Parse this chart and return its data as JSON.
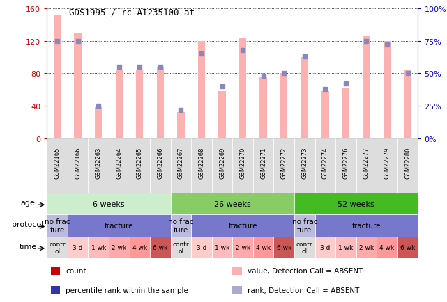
{
  "title": "GDS1995 / rc_AI235100_at",
  "samples": [
    "GSM22165",
    "GSM22166",
    "GSM22263",
    "GSM22264",
    "GSM22265",
    "GSM22266",
    "GSM22267",
    "GSM22268",
    "GSM22269",
    "GSM22270",
    "GSM22271",
    "GSM22272",
    "GSM22273",
    "GSM22274",
    "GSM22276",
    "GSM22277",
    "GSM22279",
    "GSM22280"
  ],
  "bar_values": [
    152,
    130,
    38,
    84,
    84,
    88,
    32,
    120,
    58,
    124,
    76,
    80,
    100,
    58,
    62,
    126,
    120,
    84
  ],
  "rank_values": [
    75,
    75,
    25,
    55,
    55,
    55,
    22,
    65,
    40,
    68,
    48,
    50,
    63,
    38,
    42,
    75,
    72,
    50
  ],
  "bar_color": "#FFB0B0",
  "rank_color": "#8888BB",
  "left_ylim": [
    0,
    160
  ],
  "right_ylim": [
    0,
    100
  ],
  "left_yticks": [
    0,
    40,
    80,
    120,
    160
  ],
  "right_yticks": [
    0,
    25,
    50,
    75,
    100
  ],
  "left_yticklabels": [
    "0",
    "40",
    "80",
    "120",
    "160"
  ],
  "right_yticklabels": [
    "0%",
    "25%",
    "50%",
    "75%",
    "100%"
  ],
  "age_groups": [
    {
      "label": "6 weeks",
      "start": 0,
      "end": 6,
      "color": "#CCEECC"
    },
    {
      "label": "26 weeks",
      "start": 6,
      "end": 12,
      "color": "#88CC66"
    },
    {
      "label": "52 weeks",
      "start": 12,
      "end": 18,
      "color": "#44BB22"
    }
  ],
  "protocol_groups": [
    {
      "label": "no frac\nture",
      "start": 0,
      "end": 1,
      "color": "#BBBBDD"
    },
    {
      "label": "fracture",
      "start": 1,
      "end": 6,
      "color": "#7777CC"
    },
    {
      "label": "no frac\nture",
      "start": 6,
      "end": 7,
      "color": "#BBBBDD"
    },
    {
      "label": "fracture",
      "start": 7,
      "end": 12,
      "color": "#7777CC"
    },
    {
      "label": "no frac\nture",
      "start": 12,
      "end": 13,
      "color": "#BBBBDD"
    },
    {
      "label": "fracture",
      "start": 13,
      "end": 18,
      "color": "#7777CC"
    }
  ],
  "time_groups": [
    {
      "label": "contr\nol",
      "start": 0,
      "end": 1,
      "color": "#DDDDDD"
    },
    {
      "label": "3 d",
      "start": 1,
      "end": 2,
      "color": "#FFCCCC"
    },
    {
      "label": "1 wk",
      "start": 2,
      "end": 3,
      "color": "#FFBBBB"
    },
    {
      "label": "2 wk",
      "start": 3,
      "end": 4,
      "color": "#FFAAAA"
    },
    {
      "label": "4 wk",
      "start": 4,
      "end": 5,
      "color": "#FF9999"
    },
    {
      "label": "6 wk",
      "start": 5,
      "end": 6,
      "color": "#CC5555"
    },
    {
      "label": "contr\nol",
      "start": 6,
      "end": 7,
      "color": "#DDDDDD"
    },
    {
      "label": "3 d",
      "start": 7,
      "end": 8,
      "color": "#FFCCCC"
    },
    {
      "label": "1 wk",
      "start": 8,
      "end": 9,
      "color": "#FFBBBB"
    },
    {
      "label": "2 wk",
      "start": 9,
      "end": 10,
      "color": "#FFAAAA"
    },
    {
      "label": "4 wk",
      "start": 10,
      "end": 11,
      "color": "#FF9999"
    },
    {
      "label": "6 wk",
      "start": 11,
      "end": 12,
      "color": "#CC5555"
    },
    {
      "label": "contr\nol",
      "start": 12,
      "end": 13,
      "color": "#DDDDDD"
    },
    {
      "label": "3 d",
      "start": 13,
      "end": 14,
      "color": "#FFCCCC"
    },
    {
      "label": "1 wk",
      "start": 14,
      "end": 15,
      "color": "#FFBBBB"
    },
    {
      "label": "2 wk",
      "start": 15,
      "end": 16,
      "color": "#FFAAAA"
    },
    {
      "label": "4 wk",
      "start": 16,
      "end": 17,
      "color": "#FF9999"
    },
    {
      "label": "6 wk",
      "start": 17,
      "end": 18,
      "color": "#CC5555"
    }
  ],
  "legend_items": [
    {
      "label": "count",
      "color": "#CC0000"
    },
    {
      "label": "percentile rank within the sample",
      "color": "#3333AA"
    },
    {
      "label": "value, Detection Call = ABSENT",
      "color": "#FFB0B0"
    },
    {
      "label": "rank, Detection Call = ABSENT",
      "color": "#AAAACC"
    }
  ],
  "left_axis_color": "#CC0000",
  "right_axis_color": "#0000CC",
  "bar_width": 0.35,
  "rank_marker_size": 4
}
